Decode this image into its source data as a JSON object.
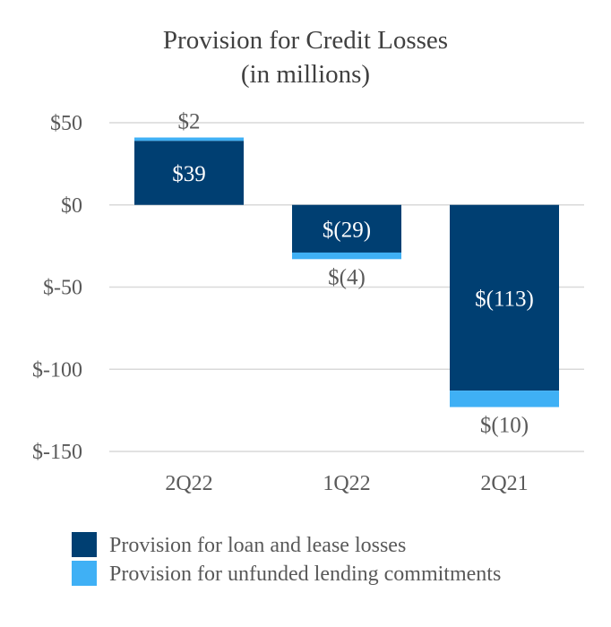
{
  "chart_data": {
    "type": "bar",
    "stacked": true,
    "title": "Provision for Credit Losses",
    "subtitle": "(in millions)",
    "categories": [
      "2Q22",
      "1Q22",
      "2Q21"
    ],
    "series": [
      {
        "name": "Provision for loan and lease losses",
        "color": "#003f72",
        "values": [
          39,
          -29,
          -113
        ],
        "labels": [
          "$39",
          "$(29)",
          "$(113)"
        ]
      },
      {
        "name": "Provision for unfunded lending commitments",
        "color": "#3fb0f5",
        "values": [
          2,
          -4,
          -10
        ],
        "labels": [
          "$2",
          "$(4)",
          "$(10)"
        ]
      }
    ],
    "ylim": [
      -150,
      50
    ],
    "yticks": [
      {
        "value": 50,
        "label": "$50"
      },
      {
        "value": 0,
        "label": "$0"
      },
      {
        "value": -50,
        "label": "$-50"
      },
      {
        "value": -100,
        "label": "$-100"
      },
      {
        "value": -150,
        "label": "$-150"
      }
    ],
    "grid": true,
    "legend_position": "bottom",
    "xlabel": "",
    "ylabel": ""
  }
}
